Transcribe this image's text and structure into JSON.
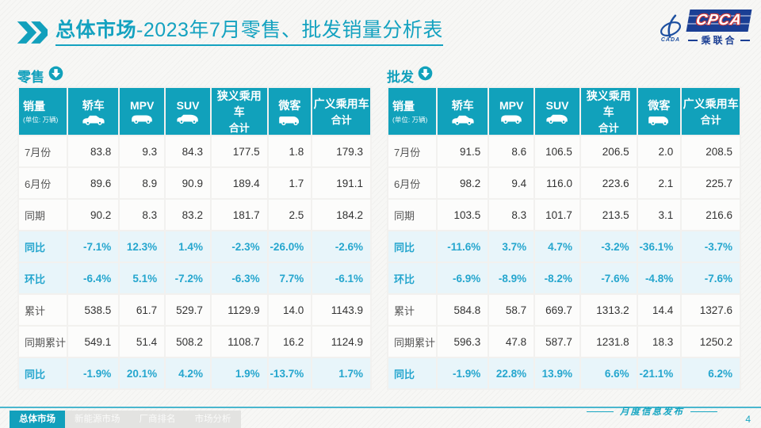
{
  "title": {
    "bold": "总体市场",
    "rest": "-2023年7月零售、批发销量分析表"
  },
  "logo": {
    "cpca": "CPCA",
    "sub": "乘联合",
    "cada": "CADA"
  },
  "watermark": "CPCA 乘联合",
  "colors": {
    "accent_teal": "#12a0bc",
    "header_bg": "#11a1bb",
    "percent_text": "#25a6ce",
    "percent_row_bg": "#e8f5fa",
    "logo_blue": "#1b3f94",
    "logo_red": "#d03a3a"
  },
  "tables": [
    {
      "section_label": "零售",
      "header": {
        "col0_title": "销量",
        "col0_sub": "(单位: 万辆)",
        "columns": [
          {
            "label": "轿车",
            "label2": "",
            "icon": "sedan-icon"
          },
          {
            "label": "MPV",
            "label2": "",
            "icon": "mpv-icon"
          },
          {
            "label": "SUV",
            "label2": "",
            "icon": "suv-icon"
          },
          {
            "label": "狭义乘用车",
            "label2": "合计",
            "icon": ""
          },
          {
            "label": "微客",
            "label2": "",
            "icon": "microvan-icon"
          },
          {
            "label": "广义乘用车",
            "label2": "合计",
            "icon": ""
          }
        ]
      },
      "rows": [
        {
          "label": "7月份",
          "type": "value",
          "values": [
            "83.8",
            "9.3",
            "84.3",
            "177.5",
            "1.8",
            "179.3"
          ]
        },
        {
          "label": "6月份",
          "type": "value",
          "values": [
            "89.6",
            "8.9",
            "90.9",
            "189.4",
            "1.7",
            "191.1"
          ]
        },
        {
          "label": "同期",
          "type": "value",
          "values": [
            "90.2",
            "8.3",
            "83.2",
            "181.7",
            "2.5",
            "184.2"
          ]
        },
        {
          "label": "同比",
          "type": "percent",
          "values": [
            "-7.1%",
            "12.3%",
            "1.4%",
            "-2.3%",
            "-26.0%",
            "-2.6%"
          ]
        },
        {
          "label": "环比",
          "type": "percent",
          "values": [
            "-6.4%",
            "5.1%",
            "-7.2%",
            "-6.3%",
            "7.7%",
            "-6.1%"
          ]
        },
        {
          "label": "累计",
          "type": "value",
          "values": [
            "538.5",
            "61.7",
            "529.7",
            "1129.9",
            "14.0",
            "1143.9"
          ]
        },
        {
          "label": "同期累计",
          "type": "value",
          "values": [
            "549.1",
            "51.4",
            "508.2",
            "1108.7",
            "16.2",
            "1124.9"
          ]
        },
        {
          "label": "同比",
          "type": "percent",
          "values": [
            "-1.9%",
            "20.1%",
            "4.2%",
            "1.9%",
            "-13.7%",
            "1.7%"
          ]
        }
      ]
    },
    {
      "section_label": "批发",
      "header": {
        "col0_title": "销量",
        "col0_sub": "(单位: 万辆)",
        "columns": [
          {
            "label": "轿车",
            "label2": "",
            "icon": "sedan-icon"
          },
          {
            "label": "MPV",
            "label2": "",
            "icon": "mpv-icon"
          },
          {
            "label": "SUV",
            "label2": "",
            "icon": "suv-icon"
          },
          {
            "label": "狭义乘用车",
            "label2": "合计",
            "icon": ""
          },
          {
            "label": "微客",
            "label2": "",
            "icon": "microvan-icon"
          },
          {
            "label": "广义乘用车",
            "label2": "合计",
            "icon": ""
          }
        ]
      },
      "rows": [
        {
          "label": "7月份",
          "type": "value",
          "values": [
            "91.5",
            "8.6",
            "106.5",
            "206.5",
            "2.0",
            "208.5"
          ]
        },
        {
          "label": "6月份",
          "type": "value",
          "values": [
            "98.2",
            "9.4",
            "116.0",
            "223.6",
            "2.1",
            "225.7"
          ]
        },
        {
          "label": "同期",
          "type": "value",
          "values": [
            "103.5",
            "8.3",
            "101.7",
            "213.5",
            "3.1",
            "216.6"
          ]
        },
        {
          "label": "同比",
          "type": "percent",
          "values": [
            "-11.6%",
            "3.7%",
            "4.7%",
            "-3.2%",
            "-36.1%",
            "-3.7%"
          ]
        },
        {
          "label": "环比",
          "type": "percent",
          "values": [
            "-6.9%",
            "-8.9%",
            "-8.2%",
            "-7.6%",
            "-4.8%",
            "-7.6%"
          ]
        },
        {
          "label": "累计",
          "type": "value",
          "values": [
            "584.8",
            "58.7",
            "669.7",
            "1313.2",
            "14.4",
            "1327.6"
          ]
        },
        {
          "label": "同期累计",
          "type": "value",
          "values": [
            "596.3",
            "47.8",
            "587.7",
            "1231.8",
            "18.3",
            "1250.2"
          ]
        },
        {
          "label": "同比",
          "type": "percent",
          "values": [
            "-1.9%",
            "22.8%",
            "13.9%",
            "6.6%",
            "-21.1%",
            "6.2%"
          ]
        }
      ]
    }
  ],
  "footer": {
    "tabs": [
      {
        "label": "总体市场",
        "active": true
      },
      {
        "label": "新能源市场",
        "active": false
      },
      {
        "label": "厂商排名",
        "active": false
      },
      {
        "label": "市场分析",
        "active": false
      }
    ],
    "publish_label": "月度信息发布",
    "page_number": "4"
  }
}
